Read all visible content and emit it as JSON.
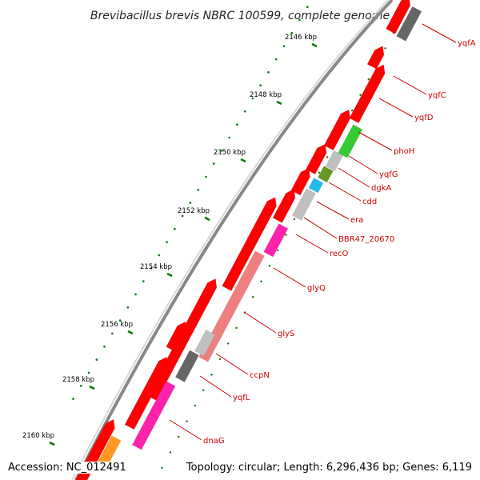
{
  "title": "Brevibacillus brevis NBRC 100599, complete genome",
  "accession": "Accession: NC_012491",
  "topology": "Topology: circular; Length: 6,296,436 bp; Genes: 6,119",
  "colors": {
    "forward": "#ff0000",
    "backbone": "#888888",
    "ticks": "#007700",
    "label": "#cc0000",
    "hypothetical": "#c0c0c0",
    "dark": "#666666",
    "green": "#33cc33",
    "olive": "#669922",
    "cyan": "#22bbee",
    "magenta": "#ff22aa",
    "salmon": "#f08080",
    "orange": "#ff9922"
  },
  "kbp_labels": [
    "2146 kbp",
    "2148 kbp",
    "2150 kbp",
    "2152 kbp",
    "2154 kbp",
    "2156 kbp",
    "2158 kbp",
    "2160 kbp"
  ],
  "gene_labels": [
    "yqfA",
    "yqfC",
    "yqfD",
    "phoH",
    "yqfG",
    "dgkA",
    "cdd",
    "era",
    "BBR47_20670",
    "recO",
    "glyQ",
    "glyS",
    "ccpN",
    "yqfL",
    "dnaG"
  ]
}
